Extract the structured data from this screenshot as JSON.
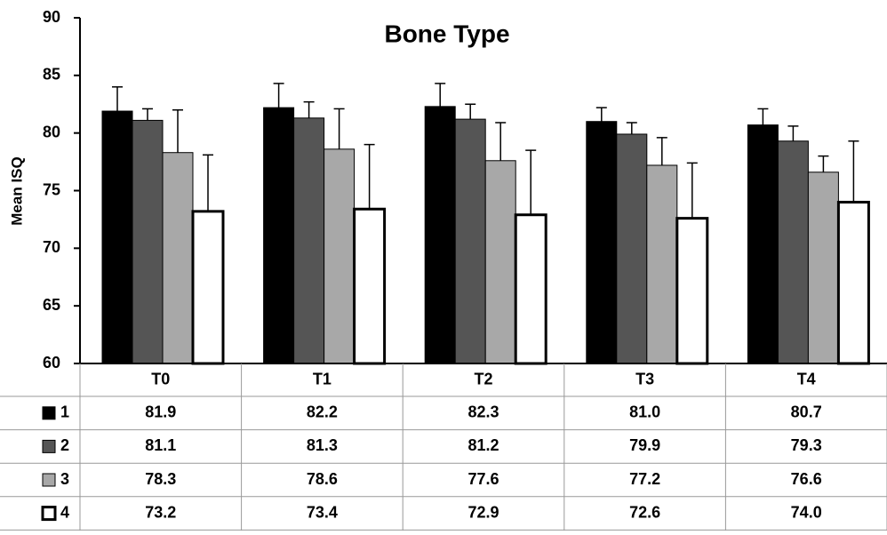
{
  "chart_data": {
    "type": "bar",
    "title": "Bone Type",
    "y_label": "Mean ISQ",
    "categories": [
      "T0",
      "T1",
      "T2",
      "T3",
      "T4"
    ],
    "series": [
      {
        "name": "1",
        "color": "#000000",
        "values": [
          81.9,
          82.2,
          82.3,
          81.0,
          80.7
        ],
        "value_labels": [
          "81.9",
          "82.2",
          "82.3",
          "81.0",
          "80.7"
        ],
        "errors": [
          2.1,
          2.1,
          2.0,
          1.2,
          1.4
        ]
      },
      {
        "name": "2",
        "color": "#555555",
        "values": [
          81.1,
          81.3,
          81.2,
          79.9,
          79.3
        ],
        "value_labels": [
          "81.1",
          "81.3",
          "81.2",
          "79.9",
          "79.3"
        ],
        "errors": [
          1.0,
          1.4,
          1.3,
          1.0,
          1.3
        ]
      },
      {
        "name": "3",
        "color": "#a8a8a8",
        "values": [
          78.3,
          78.6,
          77.6,
          77.2,
          76.6
        ],
        "value_labels": [
          "78.3",
          "78.6",
          "77.6",
          "77.2",
          "76.6"
        ],
        "errors": [
          3.7,
          3.5,
          3.3,
          2.4,
          1.4
        ]
      },
      {
        "name": "4",
        "color": "#ffffff",
        "values": [
          73.2,
          73.4,
          72.9,
          72.6,
          74.0
        ],
        "value_labels": [
          "73.2",
          "73.4",
          "72.9",
          "72.6",
          "74.0"
        ],
        "errors": [
          4.9,
          5.6,
          5.6,
          4.8,
          5.3
        ]
      }
    ],
    "ylim": [
      60,
      90
    ],
    "yticks": [
      60,
      65,
      70,
      75,
      80,
      85,
      90
    ],
    "grid": false
  }
}
